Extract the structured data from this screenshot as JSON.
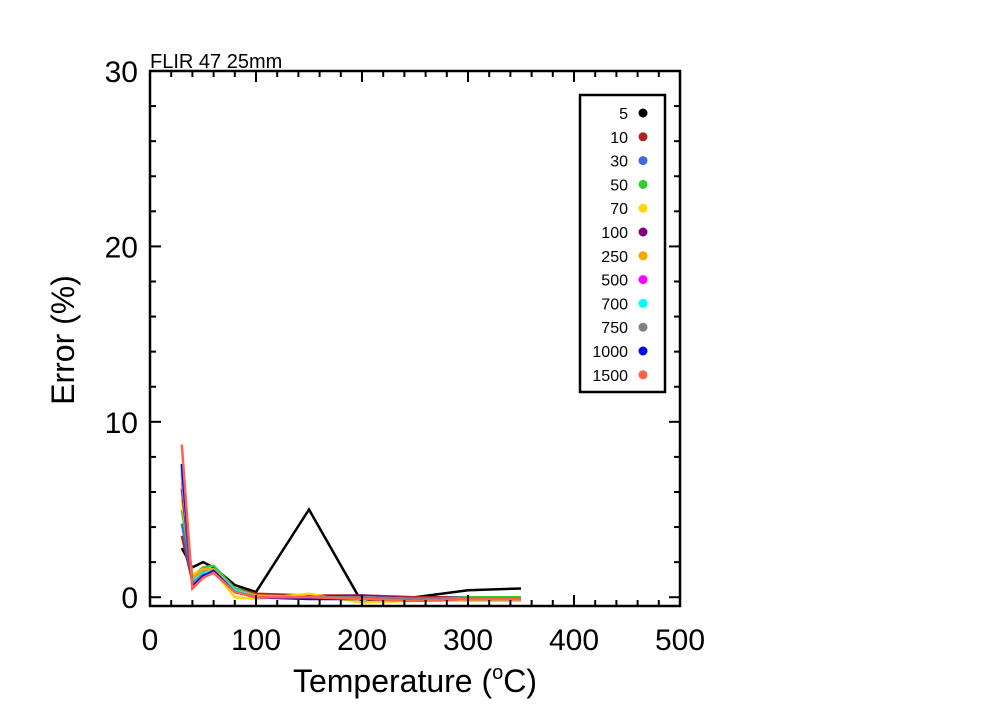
{
  "chart_data": {
    "type": "line",
    "title": "FLIR 47 25mm",
    "xlabel_main": "Temperature (",
    "xlabel_super": "o",
    "xlabel_tail": "C)",
    "ylabel": "Error (%)",
    "xlim": [
      0,
      500
    ],
    "ylim": [
      -0.5,
      30
    ],
    "x_ticks": [
      0,
      100,
      200,
      300,
      400,
      500
    ],
    "y_ticks": [
      0,
      10,
      20,
      30
    ],
    "x_tick_labels": [
      "0",
      "100",
      "200",
      "300",
      "400",
      "500"
    ],
    "y_tick_labels": [
      "0",
      "10",
      "20",
      "30"
    ],
    "legend_position": "top-right",
    "grid": false,
    "series": [
      {
        "name": "5",
        "color": "#000000",
        "points": [
          [
            30,
            2.8
          ],
          [
            40,
            1.7
          ],
          [
            50,
            2.0
          ],
          [
            60,
            1.7
          ],
          [
            80,
            0.7
          ],
          [
            100,
            0.3
          ],
          [
            150,
            5.0
          ],
          [
            200,
            -0.3
          ],
          [
            250,
            0.0
          ],
          [
            300,
            0.4
          ],
          [
            350,
            0.5
          ]
        ]
      },
      {
        "name": "10",
        "color": "#b22222",
        "points": [
          [
            30,
            3.5
          ],
          [
            40,
            0.9
          ],
          [
            50,
            1.6
          ],
          [
            60,
            1.6
          ],
          [
            80,
            0.5
          ],
          [
            100,
            0.2
          ],
          [
            150,
            0.1
          ],
          [
            200,
            0.1
          ],
          [
            250,
            0.0
          ],
          [
            300,
            0.0
          ],
          [
            350,
            0.0
          ]
        ]
      },
      {
        "name": "30",
        "color": "#4169e1",
        "points": [
          [
            30,
            4.2
          ],
          [
            40,
            1.0
          ],
          [
            50,
            1.5
          ],
          [
            60,
            1.4
          ],
          [
            80,
            0.4
          ],
          [
            100,
            0.1
          ],
          [
            150,
            0.0
          ],
          [
            200,
            0.0
          ],
          [
            250,
            -0.1
          ],
          [
            300,
            0.0
          ],
          [
            350,
            0.0
          ]
        ]
      },
      {
        "name": "50",
        "color": "#32cd32",
        "points": [
          [
            30,
            5.0
          ],
          [
            40,
            1.2
          ],
          [
            50,
            1.7
          ],
          [
            60,
            1.8
          ],
          [
            80,
            0.5
          ],
          [
            100,
            0.1
          ],
          [
            150,
            0.0
          ],
          [
            200,
            0.0
          ],
          [
            250,
            -0.2
          ],
          [
            300,
            0.0
          ],
          [
            350,
            0.0
          ]
        ]
      },
      {
        "name": "70",
        "color": "#ffd700",
        "points": [
          [
            30,
            5.6
          ],
          [
            40,
            1.3
          ],
          [
            50,
            1.6
          ],
          [
            60,
            1.5
          ],
          [
            80,
            0.0
          ],
          [
            100,
            -0.1
          ],
          [
            150,
            0.2
          ],
          [
            200,
            -0.3
          ],
          [
            250,
            -0.2
          ],
          [
            300,
            -0.2
          ],
          [
            350,
            -0.2
          ]
        ]
      },
      {
        "name": "100",
        "color": "#800080",
        "points": [
          [
            30,
            6.2
          ],
          [
            40,
            0.8
          ],
          [
            50,
            1.4
          ],
          [
            60,
            1.5
          ],
          [
            80,
            0.3
          ],
          [
            100,
            0.1
          ],
          [
            150,
            0.0
          ],
          [
            200,
            0.1
          ],
          [
            250,
            -0.1
          ],
          [
            300,
            -0.1
          ],
          [
            350,
            -0.1
          ]
        ]
      },
      {
        "name": "250",
        "color": "#ffa500",
        "points": [
          [
            30,
            6.6
          ],
          [
            40,
            1.1
          ],
          [
            50,
            1.6
          ],
          [
            60,
            1.6
          ],
          [
            80,
            0.4
          ],
          [
            100,
            0.1
          ],
          [
            150,
            0.0
          ],
          [
            200,
            0.0
          ],
          [
            250,
            -0.1
          ],
          [
            300,
            -0.1
          ],
          [
            350,
            -0.1
          ]
        ]
      },
      {
        "name": "500",
        "color": "#ff00ff",
        "points": [
          [
            30,
            7.0
          ],
          [
            40,
            0.7
          ],
          [
            50,
            1.3
          ],
          [
            60,
            1.5
          ],
          [
            80,
            0.4
          ],
          [
            100,
            0.0
          ],
          [
            150,
            0.0
          ],
          [
            200,
            0.0
          ],
          [
            250,
            -0.1
          ],
          [
            300,
            -0.1
          ],
          [
            350,
            -0.1
          ]
        ]
      },
      {
        "name": "700",
        "color": "#00ffff",
        "points": [
          [
            30,
            7.2
          ],
          [
            40,
            0.9
          ],
          [
            50,
            1.4
          ],
          [
            60,
            1.5
          ],
          [
            80,
            0.4
          ],
          [
            100,
            0.0
          ],
          [
            150,
            0.0
          ],
          [
            200,
            0.0
          ],
          [
            250,
            -0.1
          ],
          [
            300,
            -0.1
          ],
          [
            350,
            -0.1
          ]
        ]
      },
      {
        "name": "750",
        "color": "#808080",
        "points": [
          [
            30,
            7.4
          ],
          [
            40,
            0.8
          ],
          [
            50,
            1.3
          ],
          [
            60,
            1.4
          ],
          [
            80,
            0.3
          ],
          [
            100,
            0.0
          ],
          [
            150,
            0.0
          ],
          [
            200,
            0.0
          ],
          [
            250,
            -0.1
          ],
          [
            300,
            -0.1
          ],
          [
            350,
            -0.1
          ]
        ]
      },
      {
        "name": "1000",
        "color": "#0000ff",
        "points": [
          [
            30,
            7.6
          ],
          [
            40,
            0.6
          ],
          [
            50,
            1.2
          ],
          [
            60,
            1.5
          ],
          [
            80,
            0.3
          ],
          [
            100,
            0.0
          ],
          [
            150,
            -0.1
          ],
          [
            200,
            -0.1
          ],
          [
            250,
            -0.2
          ],
          [
            300,
            -0.1
          ],
          [
            350,
            -0.1
          ]
        ]
      },
      {
        "name": "1500",
        "color": "#ff6347",
        "points": [
          [
            30,
            8.7
          ],
          [
            40,
            0.5
          ],
          [
            50,
            1.1
          ],
          [
            60,
            1.4
          ],
          [
            80,
            0.3
          ],
          [
            100,
            0.0
          ],
          [
            150,
            0.0
          ],
          [
            200,
            -0.1
          ],
          [
            250,
            -0.2
          ],
          [
            300,
            -0.1
          ],
          [
            350,
            -0.1
          ]
        ]
      }
    ]
  }
}
